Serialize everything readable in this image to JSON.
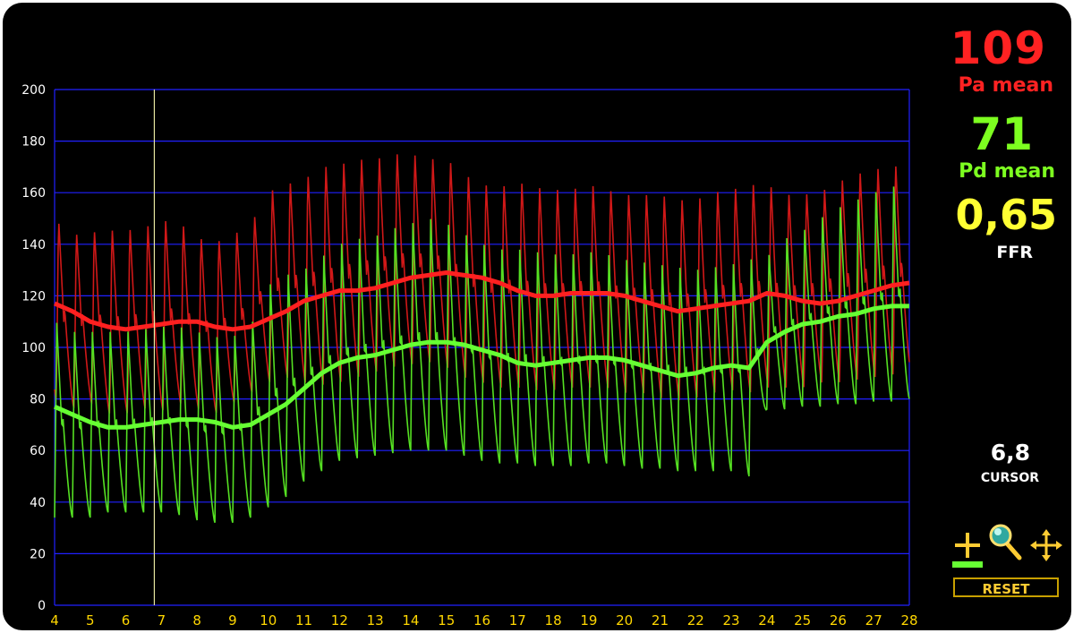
{
  "readouts": {
    "pa_mean_value": "109",
    "pa_mean_label": "Pa mean",
    "pd_mean_value": "71",
    "pd_mean_label": "Pd mean",
    "ffr_value": "0,65",
    "ffr_label": "FFR",
    "cursor_value": "6,8",
    "cursor_label": "CURSOR"
  },
  "toolbar": {
    "reset_label": "RESET",
    "tools": [
      "cursor-cross-icon",
      "zoom-magnifier-icon",
      "pan-move-icon"
    ]
  },
  "colors": {
    "pa": "#ff2020",
    "pd": "#66ff33",
    "ffr": "#ffff33",
    "grid": "#2020ff",
    "cursor_line": "#e6e6a0",
    "axis_text": "#ffffff",
    "x_tick_text": "#ffd700"
  },
  "chart_data": {
    "type": "line",
    "xlim": [
      4,
      28
    ],
    "ylim": [
      0,
      200
    ],
    "x_ticks": [
      4,
      5,
      6,
      7,
      8,
      9,
      10,
      11,
      12,
      13,
      14,
      15,
      16,
      17,
      18,
      19,
      20,
      21,
      22,
      23,
      24,
      25,
      26,
      27,
      28
    ],
    "y_ticks": [
      0,
      20,
      40,
      60,
      80,
      100,
      120,
      140,
      160,
      180,
      200
    ],
    "grid": true,
    "cursor_x": 6.8,
    "series": [
      {
        "key": "pa_mean",
        "x": [
          4,
          4.5,
          5,
          5.5,
          6,
          6.5,
          7,
          7.5,
          8,
          8.5,
          9,
          9.5,
          10,
          10.5,
          11,
          11.5,
          12,
          12.5,
          13,
          13.5,
          14,
          14.5,
          15,
          15.5,
          16,
          16.5,
          17,
          17.5,
          18,
          18.5,
          19,
          19.5,
          20,
          20.5,
          21,
          21.5,
          22,
          22.5,
          23,
          23.5,
          24,
          24.5,
          25,
          25.5,
          26,
          26.5,
          27,
          27.5,
          28
        ],
        "y": [
          117,
          114,
          110,
          108,
          107,
          108,
          109,
          110,
          110,
          108,
          107,
          108,
          111,
          114,
          118,
          120,
          122,
          122,
          123,
          125,
          127,
          128,
          129,
          128,
          127,
          125,
          122,
          120,
          120,
          121,
          121,
          121,
          120,
          118,
          116,
          114,
          115,
          116,
          117,
          118,
          121,
          120,
          118,
          117,
          118,
          120,
          122,
          124,
          125
        ]
      },
      {
        "key": "pd_mean",
        "x": [
          4,
          4.5,
          5,
          5.5,
          6,
          6.5,
          7,
          7.5,
          8,
          8.5,
          9,
          9.5,
          10,
          10.5,
          11,
          11.5,
          12,
          12.5,
          13,
          13.5,
          14,
          14.5,
          15,
          15.5,
          16,
          16.5,
          17,
          17.5,
          18,
          18.5,
          19,
          19.5,
          20,
          20.5,
          21,
          21.5,
          22,
          22.5,
          23,
          23.5,
          24,
          24.5,
          25,
          25.5,
          26,
          26.5,
          27,
          27.5,
          28
        ],
        "y": [
          77,
          74,
          71,
          69,
          69,
          70,
          71,
          72,
          72,
          71,
          69,
          70,
          74,
          78,
          84,
          90,
          94,
          96,
          97,
          99,
          101,
          102,
          102,
          101,
          99,
          97,
          94,
          93,
          94,
          95,
          96,
          96,
          95,
          93,
          91,
          89,
          90,
          92,
          93,
          92,
          102,
          106,
          109,
          110,
          112,
          113,
          115,
          116,
          116
        ]
      },
      {
        "key": "pa_phasic",
        "systolic": [
          [
            4,
            152
          ],
          [
            4.5,
            146
          ],
          [
            5,
            147
          ],
          [
            5.5,
            148
          ],
          [
            6,
            148
          ],
          [
            6.5,
            149
          ],
          [
            7,
            152
          ],
          [
            7.5,
            151
          ],
          [
            8,
            145
          ],
          [
            8.5,
            143
          ],
          [
            9,
            146
          ],
          [
            9.5,
            150
          ],
          [
            10,
            163
          ],
          [
            10.5,
            166
          ],
          [
            11,
            168
          ],
          [
            11.5,
            173
          ],
          [
            12,
            174
          ],
          [
            12.5,
            176
          ],
          [
            13,
            176
          ],
          [
            13.5,
            178
          ],
          [
            14,
            178
          ],
          [
            14.5,
            176
          ],
          [
            15,
            176
          ],
          [
            15.5,
            170
          ],
          [
            16,
            166
          ],
          [
            16.5,
            165
          ],
          [
            17,
            167
          ],
          [
            17.5,
            165
          ],
          [
            18,
            164
          ],
          [
            18.5,
            164
          ],
          [
            19,
            166
          ],
          [
            19.5,
            164
          ],
          [
            20,
            162
          ],
          [
            20.5,
            162
          ],
          [
            21,
            162
          ],
          [
            21.5,
            160
          ],
          [
            22,
            160
          ],
          [
            22.5,
            163
          ],
          [
            23,
            164
          ],
          [
            23.5,
            166
          ],
          [
            24,
            166
          ],
          [
            24.5,
            162
          ],
          [
            25,
            162
          ],
          [
            25.5,
            163
          ],
          [
            26,
            167
          ],
          [
            26.5,
            170
          ],
          [
            27,
            172
          ],
          [
            27.5,
            173
          ],
          [
            28,
            174
          ]
        ],
        "diastolic": [
          [
            4,
            80
          ],
          [
            4.5,
            76
          ],
          [
            5,
            78
          ],
          [
            5.5,
            74
          ],
          [
            6,
            74
          ],
          [
            6.5,
            76
          ],
          [
            7,
            75
          ],
          [
            7.5,
            78
          ],
          [
            8,
            76
          ],
          [
            8.5,
            74
          ],
          [
            9,
            78
          ],
          [
            9.5,
            82
          ],
          [
            10,
            86
          ],
          [
            10.5,
            88
          ],
          [
            11,
            86
          ],
          [
            11.5,
            85
          ],
          [
            12,
            86
          ],
          [
            12.5,
            88
          ],
          [
            13,
            90
          ],
          [
            13.5,
            92
          ],
          [
            14,
            93
          ],
          [
            14.5,
            94
          ],
          [
            15,
            92
          ],
          [
            15.5,
            88
          ],
          [
            16,
            86
          ],
          [
            16.5,
            84
          ],
          [
            17,
            84
          ],
          [
            17.5,
            83
          ],
          [
            18,
            83
          ],
          [
            18.5,
            84
          ],
          [
            19,
            84
          ],
          [
            19.5,
            84
          ],
          [
            20,
            82
          ],
          [
            20.5,
            82
          ],
          [
            21,
            80
          ],
          [
            21.5,
            79
          ],
          [
            22,
            80
          ],
          [
            22.5,
            82
          ],
          [
            23,
            83
          ],
          [
            23.5,
            82
          ],
          [
            24,
            84
          ],
          [
            24.5,
            84
          ],
          [
            25,
            84
          ],
          [
            25.5,
            86
          ],
          [
            26,
            86
          ],
          [
            26.5,
            87
          ],
          [
            27,
            88
          ],
          [
            27.5,
            89
          ],
          [
            28,
            90
          ]
        ]
      },
      {
        "key": "pd_phasic",
        "systolic": [
          [
            4,
            110
          ],
          [
            4.5,
            106
          ],
          [
            5,
            106
          ],
          [
            5.5,
            106
          ],
          [
            6,
            106
          ],
          [
            6.5,
            107
          ],
          [
            7,
            108
          ],
          [
            7.5,
            108
          ],
          [
            8,
            106
          ],
          [
            8.5,
            104
          ],
          [
            9,
            104
          ],
          [
            9.5,
            108
          ],
          [
            10,
            124
          ],
          [
            10.5,
            128
          ],
          [
            11,
            130
          ],
          [
            11.5,
            135
          ],
          [
            12,
            140
          ],
          [
            12.5,
            142
          ],
          [
            13,
            143
          ],
          [
            13.5,
            146
          ],
          [
            14,
            148
          ],
          [
            14.5,
            150
          ],
          [
            15,
            148
          ],
          [
            15.5,
            144
          ],
          [
            16,
            140
          ],
          [
            16.5,
            138
          ],
          [
            17,
            138
          ],
          [
            17.5,
            137
          ],
          [
            18,
            136
          ],
          [
            18.5,
            136
          ],
          [
            19,
            137
          ],
          [
            19.5,
            136
          ],
          [
            20,
            134
          ],
          [
            20.5,
            133
          ],
          [
            21,
            132
          ],
          [
            21.5,
            131
          ],
          [
            22,
            130
          ],
          [
            22.5,
            131
          ],
          [
            23,
            132
          ],
          [
            23.5,
            134
          ],
          [
            24,
            135
          ],
          [
            24.5,
            142
          ],
          [
            25,
            145
          ],
          [
            25.5,
            150
          ],
          [
            26,
            154
          ],
          [
            26.5,
            157
          ],
          [
            27,
            160
          ],
          [
            27.5,
            162
          ],
          [
            28,
            165
          ]
        ],
        "diastolic": [
          [
            4,
            34
          ],
          [
            4.5,
            34
          ],
          [
            5,
            34
          ],
          [
            5.5,
            36
          ],
          [
            6,
            36
          ],
          [
            6.5,
            36
          ],
          [
            7,
            36
          ],
          [
            7.5,
            35
          ],
          [
            8,
            33
          ],
          [
            8.5,
            32
          ],
          [
            9,
            32
          ],
          [
            9.5,
            34
          ],
          [
            10,
            38
          ],
          [
            10.5,
            42
          ],
          [
            11,
            48
          ],
          [
            11.5,
            52
          ],
          [
            12,
            56
          ],
          [
            12.5,
            57
          ],
          [
            13,
            58
          ],
          [
            13.5,
            59
          ],
          [
            14,
            60
          ],
          [
            14.5,
            60
          ],
          [
            15,
            60
          ],
          [
            15.5,
            58
          ],
          [
            16,
            56
          ],
          [
            16.5,
            55
          ],
          [
            17,
            55
          ],
          [
            17.5,
            54
          ],
          [
            18,
            54
          ],
          [
            18.5,
            54
          ],
          [
            19,
            55
          ],
          [
            19.5,
            55
          ],
          [
            20,
            54
          ],
          [
            20.5,
            53
          ],
          [
            21,
            53
          ],
          [
            21.5,
            52
          ],
          [
            22,
            52
          ],
          [
            22.5,
            52
          ],
          [
            23,
            52
          ],
          [
            23.5,
            50
          ],
          [
            24,
            76
          ],
          [
            24.5,
            76
          ],
          [
            25,
            77
          ],
          [
            25.5,
            77
          ],
          [
            26,
            78
          ],
          [
            26.5,
            78
          ],
          [
            27,
            79
          ],
          [
            27.5,
            79
          ],
          [
            28,
            80
          ]
        ]
      }
    ]
  }
}
